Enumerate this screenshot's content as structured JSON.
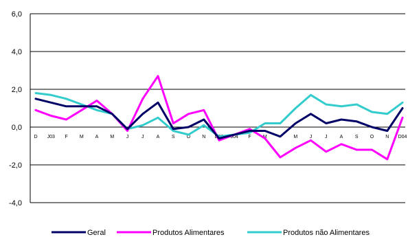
{
  "chart_data": {
    "type": "line",
    "title": "",
    "xlabel": "",
    "ylabel": "",
    "ylim": [
      -4.0,
      6.0
    ],
    "yticks": [
      "6,0",
      "4,0",
      "2,0",
      "0,0",
      "-2,0",
      "-4,0"
    ],
    "ytick_values": [
      6,
      4,
      2,
      0,
      -2,
      -4
    ],
    "grid": "horizontal",
    "legend_position": "bottom",
    "categories": [
      "D",
      "J03",
      "F",
      "M",
      "A",
      "M",
      "J",
      "J",
      "A",
      "S",
      "O",
      "N",
      "D03",
      "J04",
      "F",
      "M",
      "A",
      "M",
      "J",
      "J",
      "A",
      "S",
      "O",
      "N",
      "D04"
    ],
    "category_labels": [
      "D",
      "J03",
      "F",
      "M",
      "A",
      "M",
      "J",
      "J",
      "A",
      "S",
      "O",
      "N",
      "D03",
      "J04",
      "F",
      "M",
      "",
      "M",
      "J",
      "J",
      "A",
      "S",
      "O",
      "N",
      "D04"
    ],
    "series": [
      {
        "name": "Geral",
        "color": "#000066",
        "values": [
          1.5,
          1.3,
          1.1,
          1.1,
          1.1,
          0.7,
          -0.1,
          0.7,
          1.3,
          -0.1,
          0.0,
          0.4,
          -0.6,
          -0.4,
          -0.2,
          -0.2,
          -0.5,
          0.2,
          0.7,
          0.2,
          0.4,
          0.3,
          0.0,
          -0.2,
          1.0
        ]
      },
      {
        "name": "Produtos Alimentares",
        "color": "#ff00ff",
        "values": [
          0.9,
          0.6,
          0.4,
          0.9,
          1.4,
          0.7,
          -0.2,
          1.5,
          2.7,
          0.2,
          0.7,
          0.9,
          -0.7,
          -0.4,
          -0.1,
          -0.6,
          -1.6,
          -1.1,
          -0.7,
          -1.3,
          -0.9,
          -1.2,
          -1.2,
          -1.7,
          0.5
        ]
      },
      {
        "name": "Produtos não Alimentares",
        "color": "#33cccc",
        "values": [
          1.8,
          1.7,
          1.5,
          1.2,
          0.9,
          0.7,
          -0.1,
          0.1,
          0.5,
          -0.2,
          -0.4,
          0.1,
          -0.5,
          -0.4,
          -0.3,
          0.2,
          0.2,
          1.0,
          1.7,
          1.2,
          1.1,
          1.2,
          0.8,
          0.7,
          1.3
        ]
      }
    ],
    "legend": [
      "Geral",
      "Produtos Alimentares",
      "Produtos não Alimentares"
    ]
  }
}
